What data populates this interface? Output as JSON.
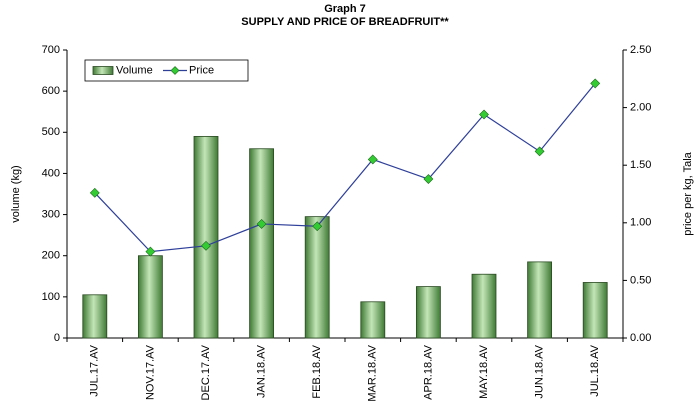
{
  "chart_data": {
    "type": "bar_line",
    "title": "Graph 7",
    "subtitle": "SUPPLY AND PRICE OF BREADFRUIT**",
    "y_label": "volume (kg)",
    "y2_label": "price per kg, Tala",
    "categories": [
      "JUL.17.AV",
      "NOV.17.AV",
      "DEC.17.AV",
      "JAN.18.AV",
      "FEB.18.AV",
      "MAR.18.AV",
      "APR.18.AV",
      "MAY.18.AV",
      "JUN.18.AV",
      "JUL.18.AV"
    ],
    "series": [
      {
        "name": "Volume",
        "type": "bar",
        "color": "#7cbc6c",
        "values": [
          105,
          200,
          490,
          460,
          295,
          88,
          125,
          155,
          185,
          135
        ]
      },
      {
        "name": "Price",
        "type": "line",
        "axis": "y2",
        "color": "#2e3f9a",
        "marker_color": "#33cc33",
        "values": [
          1.26,
          0.75,
          0.8,
          0.99,
          0.97,
          1.55,
          1.38,
          1.94,
          1.62,
          2.21
        ]
      }
    ],
    "ylim": [
      0,
      700
    ],
    "yticks": [
      0,
      100,
      200,
      300,
      400,
      500,
      600,
      700
    ],
    "y2lim": [
      0,
      2.5
    ],
    "y2ticks": [
      {
        "value": 0,
        "label": "0.00"
      },
      {
        "value": 0.5,
        "label": "0.50"
      },
      {
        "value": 1,
        "label": "1.00"
      },
      {
        "value": 1.5,
        "label": "1.50"
      },
      {
        "value": 2,
        "label": "2.00"
      },
      {
        "value": 2.5,
        "label": "2.50"
      }
    ],
    "legend": "upper left"
  }
}
